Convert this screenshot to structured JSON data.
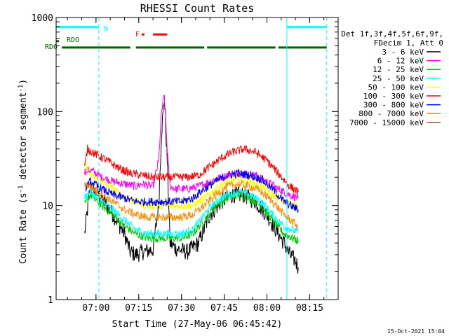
{
  "chart_data": {
    "type": "line",
    "title": "RHESSI Count Rates",
    "xlabel": "Start Time (27-May-06 06:45:42)",
    "ylabel": "Count Rate (s⁻¹ detector segment⁻¹)",
    "ylabel_main": "Count Rate (s",
    "ylabel_sup1": "-1",
    "ylabel_mid": " detector segment",
    "ylabel_sup2": "-1",
    "ylabel_end": ")",
    "yscale": "log",
    "xlim": [
      "06:46:00",
      "08:25:00"
    ],
    "ylim": [
      1,
      1000
    ],
    "x_ticks": [
      "07:00",
      "07:15",
      "07:30",
      "07:45",
      "08:00",
      "08:15"
    ],
    "y_ticks": [
      {
        "value": 1,
        "label": "1"
      },
      {
        "value": 10,
        "label": "10"
      },
      {
        "value": 100,
        "label": "100"
      },
      {
        "value": 1000,
        "label": "1000"
      }
    ],
    "legend_position": "right",
    "legend_header": [
      "Det 1f,3f,4f,5f,6f,9f,",
      "FDecim 1, Att 0"
    ],
    "series": [
      {
        "name": "3 - 6 keV",
        "color": "#000000",
        "x": [
          "06:56",
          "06:58",
          "07:02",
          "07:06",
          "07:10",
          "07:12",
          "07:14",
          "07:16",
          "07:20",
          "07:22",
          "07:23",
          "07:24",
          "07:25",
          "07:26",
          "07:28",
          "07:32",
          "07:36",
          "07:40",
          "07:44",
          "07:48",
          "07:52",
          "07:56",
          "08:00",
          "08:04",
          "08:06",
          "08:08",
          "08:10",
          "08:11"
        ],
        "values": [
          5,
          16,
          12,
          8,
          5,
          3.2,
          3,
          3.2,
          3.4,
          10,
          60,
          140,
          30,
          4,
          3.5,
          3.2,
          4,
          8,
          11,
          13,
          13,
          11,
          8,
          5,
          4,
          3,
          2.6,
          2.2
        ]
      },
      {
        "name": "6 - 12 keV",
        "color": "#ff00ff",
        "x": [
          "06:56",
          "06:58",
          "07:02",
          "07:06",
          "07:10",
          "07:14",
          "07:16",
          "07:20",
          "07:22",
          "07:23",
          "07:24",
          "07:25",
          "07:26",
          "07:28",
          "07:32",
          "07:36",
          "07:40",
          "07:44",
          "07:48",
          "07:52",
          "07:56",
          "08:00",
          "08:04",
          "08:08",
          "08:11"
        ],
        "values": [
          23,
          24,
          20,
          18,
          17,
          16,
          17,
          16,
          30,
          100,
          150,
          40,
          16,
          15,
          15,
          16,
          18,
          20,
          22,
          22,
          21,
          18,
          15,
          13,
          12
        ]
      },
      {
        "name": "12 - 25 keV",
        "color": "#00c800",
        "x": [
          "06:56",
          "06:58",
          "07:02",
          "07:06",
          "07:10",
          "07:14",
          "07:18",
          "07:22",
          "07:26",
          "07:30",
          "07:34",
          "07:38",
          "07:42",
          "07:46",
          "07:50",
          "07:54",
          "07:58",
          "08:02",
          "08:06",
          "08:11"
        ],
        "values": [
          10,
          13,
          10,
          8,
          6,
          5,
          4.5,
          4.5,
          4.5,
          4.5,
          5,
          7,
          10,
          12,
          13,
          12,
          10,
          7,
          5,
          4.2
        ]
      },
      {
        "name": "25 - 50 keV",
        "color": "#00ffff",
        "x": [
          "06:56",
          "06:58",
          "07:02",
          "07:06",
          "07:10",
          "07:14",
          "07:18",
          "07:22",
          "07:26",
          "07:30",
          "07:34",
          "07:38",
          "07:42",
          "07:46",
          "07:50",
          "07:54",
          "07:58",
          "08:02",
          "08:06",
          "08:11"
        ],
        "values": [
          12,
          14,
          11,
          9,
          7,
          5.5,
          5,
          5,
          5,
          5,
          5.5,
          8,
          11,
          13,
          14,
          13,
          11,
          8,
          6,
          5.2
        ]
      },
      {
        "name": "50 - 100 keV",
        "color": "#ffff00",
        "x": [
          "06:56",
          "06:58",
          "07:02",
          "07:06",
          "07:10",
          "07:14",
          "07:18",
          "07:22",
          "07:26",
          "07:30",
          "07:34",
          "07:38",
          "07:42",
          "07:46",
          "07:50",
          "07:54",
          "07:58",
          "08:02",
          "08:06",
          "08:11"
        ],
        "values": [
          28,
          21,
          18,
          15,
          12,
          11,
          10,
          10,
          10,
          10,
          10,
          12,
          15,
          18,
          19,
          18,
          16,
          13,
          11,
          10
        ]
      },
      {
        "name": "100 - 300 keV",
        "color": "#ff0000",
        "x": [
          "06:56",
          "06:57",
          "07:00",
          "07:04",
          "07:08",
          "07:12",
          "07:16",
          "07:20",
          "07:24",
          "07:28",
          "07:32",
          "07:36",
          "07:40",
          "07:44",
          "07:48",
          "07:52",
          "07:56",
          "08:00",
          "08:04",
          "08:08",
          "08:11"
        ],
        "values": [
          25,
          40,
          35,
          30,
          25,
          22,
          21,
          20,
          20,
          20,
          20,
          21,
          26,
          32,
          37,
          40,
          37,
          30,
          22,
          16,
          14
        ]
      },
      {
        "name": "300 - 800 keV",
        "color": "#0000ff",
        "x": [
          "06:56",
          "06:58",
          "07:02",
          "07:06",
          "07:10",
          "07:14",
          "07:18",
          "07:22",
          "07:26",
          "07:30",
          "07:34",
          "07:38",
          "07:42",
          "07:46",
          "07:50",
          "07:54",
          "07:58",
          "08:02",
          "08:06",
          "08:11"
        ],
        "values": [
          15,
          18,
          15,
          13,
          12,
          11,
          11,
          11,
          11,
          11,
          12,
          15,
          18,
          21,
          22,
          21,
          19,
          15,
          11,
          9
        ]
      },
      {
        "name": "800 - 7000 keV",
        "color": "#ff8c00",
        "x": [
          "06:56",
          "06:58",
          "07:02",
          "07:06",
          "07:10",
          "07:14",
          "07:18",
          "07:22",
          "07:26",
          "07:30",
          "07:34",
          "07:38",
          "07:42",
          "07:46",
          "07:50",
          "07:54",
          "07:58",
          "08:02",
          "08:06",
          "08:11"
        ],
        "values": [
          17,
          16,
          13,
          11,
          9,
          8,
          7.5,
          7.5,
          7.5,
          7.5,
          8,
          10,
          13,
          16,
          17,
          16,
          14,
          11,
          8,
          6
        ]
      },
      {
        "name": "7000 - 15000 keV",
        "color": "#a0522d",
        "x": [],
        "values": []
      }
    ],
    "status_bars": [
      {
        "label": "RDO",
        "color": "#006400",
        "level": 560,
        "segments": [
          [
            "06:46",
            "06:47"
          ]
        ]
      },
      {
        "label": "RD6",
        "color": "#006400",
        "level": 480,
        "segments": [
          [
            "06:48",
            "07:12"
          ],
          [
            "07:14",
            "07:38"
          ],
          [
            "07:39",
            "08:03"
          ],
          [
            "08:04",
            "08:21"
          ]
        ]
      },
      {
        "label": "N",
        "color": "#00ffff",
        "level": 790,
        "segments": [
          [
            "06:46",
            "07:01"
          ],
          [
            "08:07",
            "08:21"
          ]
        ]
      },
      {
        "label": "F",
        "color": "#ff0000",
        "level": 660,
        "segments": [
          [
            "07:16",
            "07:17"
          ],
          [
            "07:20",
            "07:25"
          ]
        ]
      }
    ],
    "vlines": [
      {
        "x": "06:46",
        "style": "solid",
        "color": "#00ffff"
      },
      {
        "x": "07:01",
        "style": "dashed",
        "color": "#00ffff"
      },
      {
        "x": "08:07",
        "style": "solid",
        "color": "#00ffff"
      },
      {
        "x": "08:21",
        "style": "dashed",
        "color": "#00ffff"
      }
    ],
    "footer_timestamp": "15-Oct-2021 15:04"
  }
}
